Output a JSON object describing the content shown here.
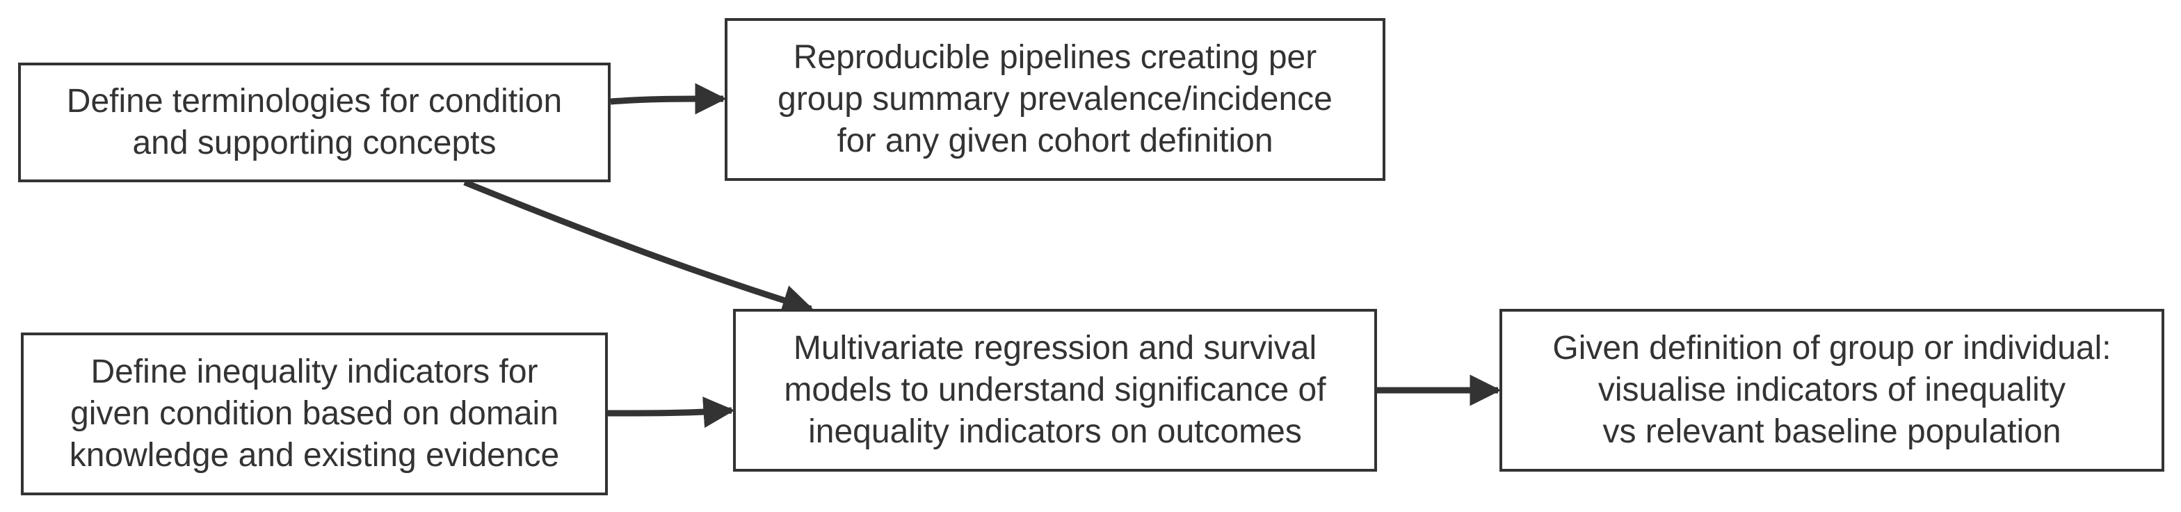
{
  "nodes": {
    "terminologies": {
      "lines": [
        "Define terminologies for condition",
        "and supporting concepts"
      ]
    },
    "pipelines": {
      "lines": [
        "Reproducible pipelines creating per",
        "group summary prevalence/incidence",
        "for any given cohort definition"
      ]
    },
    "inequality": {
      "lines": [
        "Define inequality indicators for",
        "given condition based on domain",
        "knowledge and existing evidence"
      ]
    },
    "regression": {
      "lines": [
        "Multivariate regression and survival",
        "models to understand significance of",
        "inequality indicators on outcomes"
      ]
    },
    "visualise": {
      "lines": [
        "Given definition of group or individual:",
        "visualise indicators of inequality",
        "vs relevant baseline population"
      ]
    }
  },
  "edges": [
    {
      "from": "terminologies",
      "to": "pipelines"
    },
    {
      "from": "terminologies",
      "to": "regression"
    },
    {
      "from": "inequality",
      "to": "regression"
    },
    {
      "from": "regression",
      "to": "visualise"
    }
  ],
  "colors": {
    "stroke": "#333333",
    "text": "#333333",
    "background": "#ffffff"
  }
}
